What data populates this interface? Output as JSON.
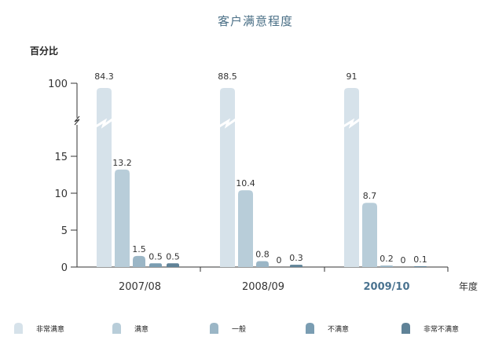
{
  "chart_data": {
    "type": "bar",
    "title": "客户满意程度",
    "ylabel": "百分比",
    "xlabel": "年度",
    "categories": [
      "2007/08",
      "2008/09",
      "2009/10"
    ],
    "highlight_category": "2009/10",
    "y_ticks": [
      "0",
      "5",
      "10",
      "15",
      "100"
    ],
    "ylim_lower": [
      0,
      18
    ],
    "ylim_upper_tick": 100,
    "axis_break": true,
    "series": [
      {
        "name": "非常满意",
        "color": "#d6e2ea",
        "values": [
          84.3,
          88.5,
          91
        ],
        "labels": [
          "84.3",
          "88.5",
          "91"
        ]
      },
      {
        "name": "满意",
        "color": "#b8cdd9",
        "values": [
          13.2,
          10.4,
          8.7
        ],
        "labels": [
          "13.2",
          "10.4",
          "8.7"
        ]
      },
      {
        "name": "一般",
        "color": "#9bb6c6",
        "values": [
          1.5,
          0.8,
          0.2
        ],
        "labels": [
          "1.5",
          "0.8",
          "0.2"
        ]
      },
      {
        "name": "不满意",
        "color": "#7a9db2",
        "values": [
          0.5,
          0,
          0
        ],
        "labels": [
          "0.5",
          "0",
          "0"
        ]
      },
      {
        "name": "非常不满意",
        "color": "#5f8297",
        "values": [
          0.5,
          0.3,
          0.1
        ],
        "labels": [
          "0.5",
          "0.3",
          "0.1"
        ]
      }
    ],
    "legend_position": "bottom"
  }
}
